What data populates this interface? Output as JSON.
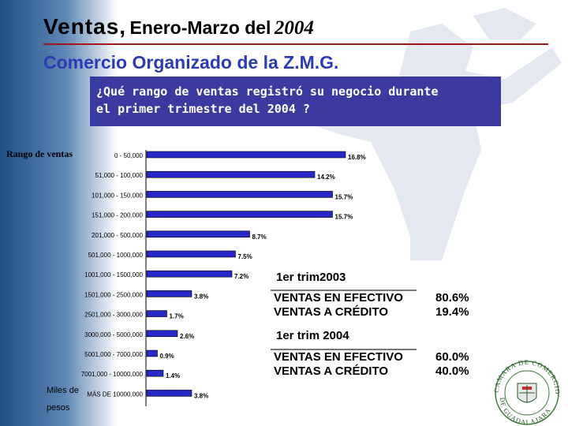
{
  "header": {
    "title_part1": "Ventas,",
    "title_part2": "Enero-Marzo del",
    "title_part3": "2004",
    "subtitle": "Comercio Organizado de la Z.M.G."
  },
  "question": {
    "line1": "¿Qué rango de ventas registró su negocio durante",
    "line2": "el primer trimestre del 2004 ?"
  },
  "colors": {
    "bar": "#2828c8",
    "question_bg": "#3a3aa0",
    "subtitle": "#2b3bb8",
    "rule": "#a01818"
  },
  "chart_data": {
    "type": "bar",
    "orientation": "horizontal",
    "ylabel": "Rango de ventas",
    "xlabel": "Miles de pesos",
    "categories": [
      "0 - 50,000",
      "51,000 - 100,000",
      "101,000 - 150,000",
      "151,000 - 200,000",
      "201,000 - 500,000",
      "501,000 - 1000,000",
      "1001,000 - 1500,000",
      "1501,000 - 2500,000",
      "2501,000 - 3000,000",
      "3000,000 - 5000,000",
      "5001,000 - 7000,000",
      "7001,000 - 10000,000",
      "MÁS DE 10000,000"
    ],
    "values": [
      16.8,
      14.2,
      15.7,
      15.7,
      8.7,
      7.5,
      7.2,
      3.8,
      1.7,
      2.6,
      0.9,
      1.4,
      3.8
    ],
    "value_labels": [
      "16.8%",
      "14.2%",
      "15.7%",
      "15.7%",
      "8.7%",
      "7.5%",
      "7.2%",
      "3.8%",
      "1.7%",
      "2.6%",
      "0.9%",
      "1.4%",
      "3.8%"
    ],
    "xlim": [
      0,
      20
    ],
    "grid": false,
    "legend": "none"
  },
  "tables": [
    {
      "heading": "1er trim2003",
      "rows": [
        {
          "label": "VENTAS EN EFECTIVO",
          "value": "80.6%"
        },
        {
          "label": "VENTAS A CRÉDITO",
          "value": "19.4%"
        }
      ]
    },
    {
      "heading": "1er trim 2004",
      "rows": [
        {
          "label": "VENTAS EN EFECTIVO",
          "value": "60.0%"
        },
        {
          "label": "VENTAS A CRÉDITO",
          "value": "40.0%"
        }
      ]
    }
  ],
  "seal": {
    "text": "CAMARA DE COMERCIO DE GUADALAJARA"
  }
}
